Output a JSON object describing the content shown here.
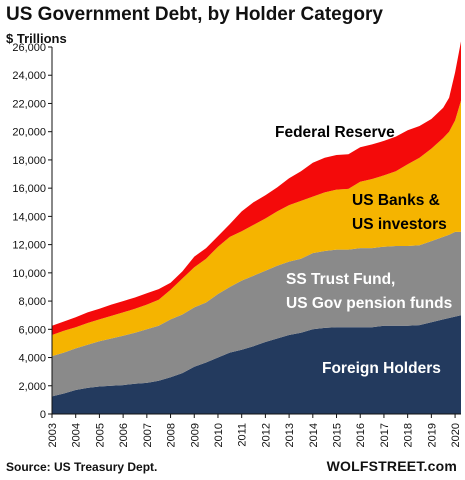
{
  "chart_data": {
    "type": "area",
    "stacked": true,
    "title": "US Government Debt, by Holder Category",
    "ylabel": "$ Trillions",
    "xlabel": "",
    "ylim": [
      0,
      26000
    ],
    "y_ticks": [
      "0",
      "2,000",
      "4,000",
      "6,000",
      "8,000",
      "10,000",
      "12,000",
      "14,000",
      "16,000",
      "18,000",
      "20,000",
      "22,000",
      "24,000",
      "26,000"
    ],
    "x_ticks": [
      "2003",
      "2004",
      "2005",
      "2006",
      "2007",
      "2008",
      "2009",
      "2010",
      "2011",
      "2012",
      "2013",
      "2014",
      "2015",
      "2016",
      "2017",
      "2018",
      "2019",
      "2020"
    ],
    "x": [
      2003.0,
      2003.5,
      2004.0,
      2004.5,
      2005.0,
      2005.5,
      2006.0,
      2006.5,
      2007.0,
      2007.5,
      2008.0,
      2008.5,
      2009.0,
      2009.5,
      2010.0,
      2010.5,
      2011.0,
      2011.5,
      2012.0,
      2012.5,
      2013.0,
      2013.5,
      2014.0,
      2014.5,
      2015.0,
      2015.5,
      2016.0,
      2016.5,
      2017.0,
      2017.5,
      2018.0,
      2018.5,
      2019.0,
      2019.5,
      2019.75,
      2020.0,
      2020.25
    ],
    "series": [
      {
        "name": "Foreign Holders",
        "color": "#233a5e",
        "values": [
          1250,
          1450,
          1700,
          1850,
          1950,
          2000,
          2050,
          2150,
          2200,
          2350,
          2600,
          2900,
          3350,
          3650,
          4000,
          4350,
          4550,
          4800,
          5100,
          5350,
          5600,
          5750,
          6000,
          6100,
          6150,
          6150,
          6150,
          6150,
          6250,
          6250,
          6250,
          6300,
          6500,
          6700,
          6800,
          6900,
          7000
        ]
      },
      {
        "name": "SS Trust Fund, US Gov pension funds",
        "color": "#8a8a8a",
        "values": [
          2850,
          2900,
          2950,
          3050,
          3200,
          3350,
          3500,
          3600,
          3800,
          3900,
          4100,
          4150,
          4200,
          4250,
          4500,
          4650,
          4900,
          5000,
          5050,
          5150,
          5200,
          5250,
          5400,
          5450,
          5500,
          5500,
          5600,
          5600,
          5600,
          5650,
          5650,
          5650,
          5750,
          5850,
          5900,
          6000,
          5900
        ]
      },
      {
        "name": "US Banks & US investors",
        "color": "#f5b400",
        "values": [
          1500,
          1550,
          1500,
          1550,
          1550,
          1600,
          1650,
          1700,
          1750,
          1850,
          2100,
          2550,
          2850,
          3100,
          3350,
          3550,
          3500,
          3600,
          3700,
          3850,
          4000,
          4100,
          4000,
          4150,
          4250,
          4300,
          4700,
          4900,
          5050,
          5300,
          5800,
          6200,
          6550,
          7000,
          7300,
          7900,
          9300
        ]
      },
      {
        "name": "Federal Reserve",
        "color": "#f40a0a",
        "values": [
          650,
          650,
          700,
          750,
          750,
          800,
          800,
          800,
          800,
          750,
          500,
          500,
          750,
          750,
          750,
          900,
          1400,
          1600,
          1650,
          1700,
          1900,
          2100,
          2400,
          2450,
          2450,
          2450,
          2450,
          2450,
          2450,
          2450,
          2400,
          2250,
          2100,
          2150,
          2400,
          3400,
          4200
        ]
      }
    ],
    "annotations": [
      {
        "text": "Federal Reserve",
        "color": "#000000"
      },
      {
        "text": "US Banks &",
        "color": "#000000"
      },
      {
        "text": "US investors",
        "color": "#000000"
      },
      {
        "text": "SS Trust Fund,",
        "color": "#ffffff"
      },
      {
        "text": "US Gov pension funds",
        "color": "#ffffff"
      },
      {
        "text": "Foreign Holders",
        "color": "#ffffff"
      }
    ],
    "grid": false,
    "legend": "inline labels"
  },
  "footer": {
    "source": "Source: US Treasury Dept.",
    "brand": "WOLFSTREET.com"
  }
}
